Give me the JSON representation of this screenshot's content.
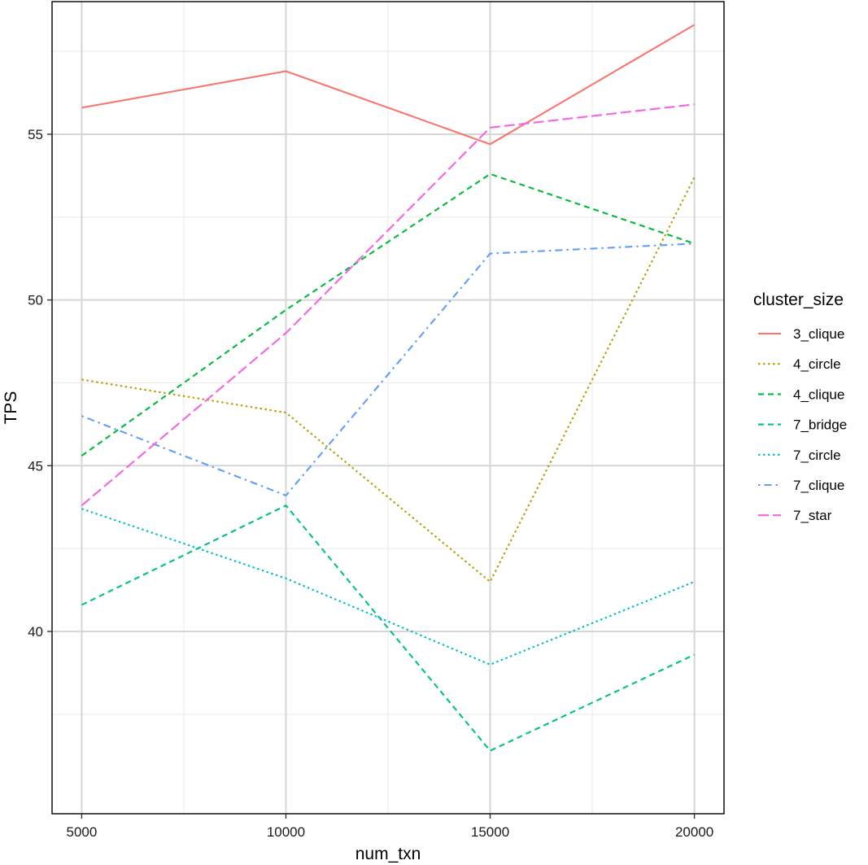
{
  "chart_data": {
    "type": "line",
    "title": "",
    "xlabel": "num_txn",
    "ylabel": "TPS",
    "x": [
      5000,
      10000,
      15000,
      20000
    ],
    "x_ticks": [
      5000,
      10000,
      15000,
      20000
    ],
    "y_ticks": [
      40,
      45,
      50,
      55
    ],
    "xlim": [
      4275,
      20725
    ],
    "ylim": [
      34.5,
      59.0
    ],
    "grid": true,
    "legend": {
      "title": "cluster_size",
      "placement": "right"
    },
    "series": [
      {
        "name": "3_clique",
        "values": [
          55.8,
          56.9,
          54.7,
          58.3
        ],
        "color": "#F8766D",
        "linetype": "solid"
      },
      {
        "name": "4_circle",
        "values": [
          47.6,
          46.6,
          41.5,
          53.7
        ],
        "color": "#B79F00",
        "linetype": "dotted"
      },
      {
        "name": "4_clique",
        "values": [
          45.3,
          49.7,
          53.8,
          51.7
        ],
        "color": "#00BA38",
        "linetype": "dashed"
      },
      {
        "name": "7_bridge",
        "values": [
          40.8,
          43.8,
          36.4,
          39.3
        ],
        "color": "#00C08B",
        "linetype": "dashed"
      },
      {
        "name": "7_circle",
        "values": [
          43.7,
          41.6,
          39.0,
          41.5
        ],
        "color": "#00BFC4",
        "linetype": "dotted"
      },
      {
        "name": "7_clique",
        "values": [
          46.5,
          44.1,
          51.4,
          51.7
        ],
        "color": "#619CFF",
        "linetype": "dotdash"
      },
      {
        "name": "7_star",
        "values": [
          43.8,
          49.0,
          55.2,
          55.9
        ],
        "color": "#F564E3",
        "linetype": "longdash"
      }
    ]
  }
}
